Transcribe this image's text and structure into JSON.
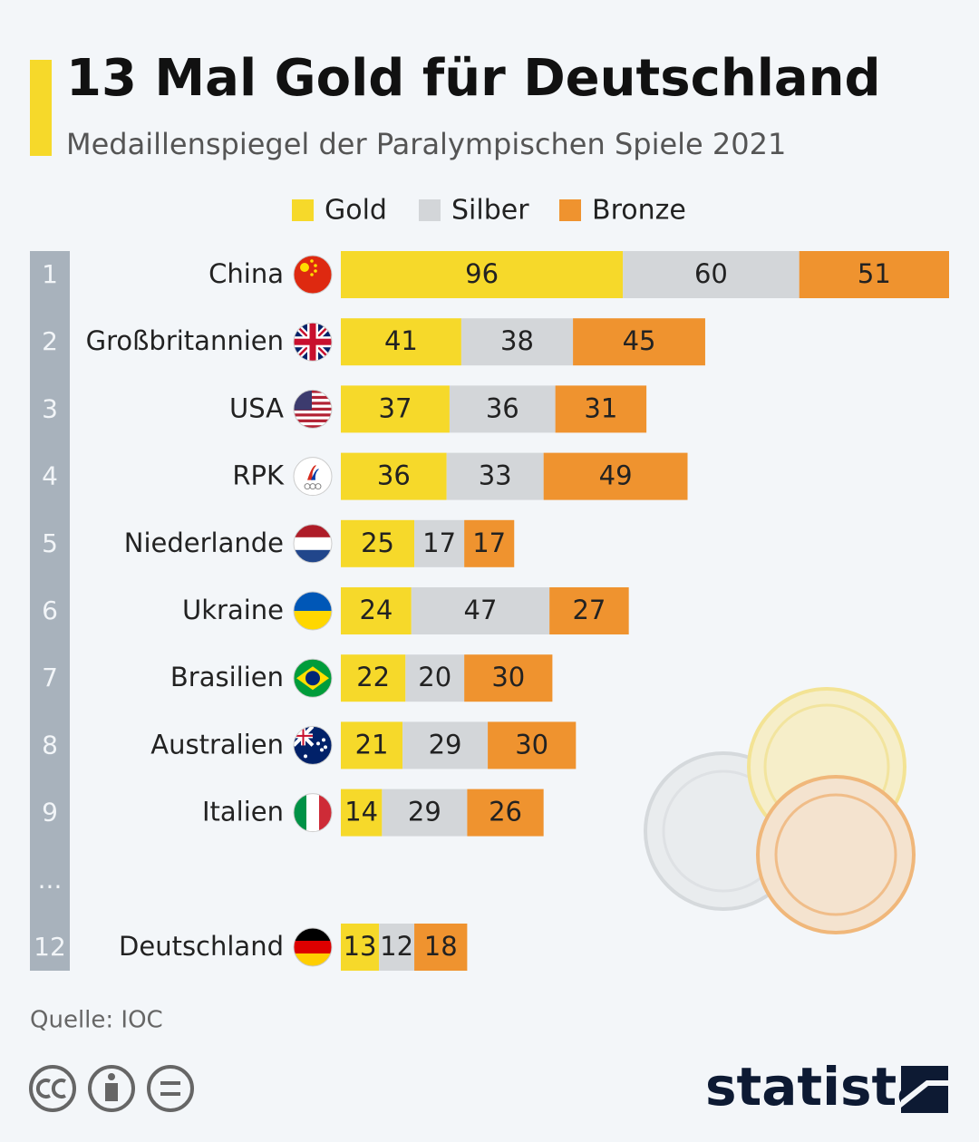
{
  "chart_data": {
    "type": "bar",
    "orientation": "horizontal",
    "stacked": true,
    "title": "13 Mal Gold für Deutschland",
    "subtitle": "Medaillenspiegel der Paralympischen Spiele 2021",
    "ranks": [
      "1",
      "2",
      "3",
      "4",
      "5",
      "6",
      "7",
      "8",
      "9",
      "...",
      "12"
    ],
    "categories": [
      "China",
      "Großbritannien",
      "USA",
      "RPK",
      "Niederlande",
      "Ukraine",
      "Brasilien",
      "Australien",
      "Italien",
      null,
      "Deutschland"
    ],
    "series": [
      {
        "name": "Gold",
        "color": "#f6d92a",
        "values": [
          96,
          41,
          37,
          36,
          25,
          24,
          22,
          21,
          14,
          null,
          13
        ]
      },
      {
        "name": "Silber",
        "color": "#d3d6d9",
        "values": [
          60,
          38,
          36,
          33,
          17,
          47,
          20,
          29,
          29,
          null,
          12
        ]
      },
      {
        "name": "Bronze",
        "color": "#ef932f",
        "values": [
          51,
          45,
          31,
          49,
          17,
          27,
          30,
          30,
          26,
          null,
          18
        ]
      }
    ],
    "source": "Quelle: IOC",
    "brand": "statista"
  }
}
